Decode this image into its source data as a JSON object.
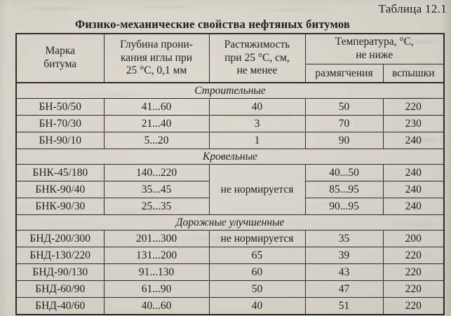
{
  "page": {
    "table_label": "Таблица 12.1",
    "title": "Физико-механические свойства нефтяных битумов"
  },
  "table": {
    "headers": {
      "grade": "Марка\nбитума",
      "penetration": "Глубина прони-\nкания иглы при\n25 °С, 0,1 мм",
      "ductility": "Растяжимость\nпри 25 °С, см,\nне менее",
      "temperature": "Температура, °С,\nне ниже",
      "softening": "размягчения",
      "flash": "вспышки"
    },
    "sections": [
      {
        "name": "Строительные",
        "rows": [
          {
            "grade": "БН-50/50",
            "penetration": "41...60",
            "ductility": "40",
            "softening": "50",
            "flash": "220"
          },
          {
            "grade": "БН-70/30",
            "penetration": "21...40",
            "ductility": "3",
            "softening": "70",
            "flash": "230"
          },
          {
            "grade": "БН-90/10",
            "penetration": "5...20",
            "ductility": "1",
            "softening": "90",
            "flash": "240"
          }
        ]
      },
      {
        "name": "Кровельные",
        "merged_ductility": "не нормируется",
        "rows": [
          {
            "grade": "БНК-45/180",
            "penetration": "140...220",
            "softening": "40...50",
            "flash": "240"
          },
          {
            "grade": "БНК-90/40",
            "penetration": "35...45",
            "softening": "85...95",
            "flash": "240"
          },
          {
            "grade": "БНК-90/30",
            "penetration": "25...35",
            "softening": "90...95",
            "flash": "240"
          }
        ]
      },
      {
        "name": "Дорожные улучшенные",
        "rows": [
          {
            "grade": "БНД-200/300",
            "penetration": "201...300",
            "ductility": "не нормируется",
            "softening": "35",
            "flash": "200"
          },
          {
            "grade": "БНД-130/220",
            "penetration": "131...200",
            "ductility": "65",
            "softening": "39",
            "flash": "220"
          },
          {
            "grade": "БНД-90/130",
            "penetration": "91...130",
            "ductility": "60",
            "softening": "43",
            "flash": "220"
          },
          {
            "grade": "БНД-60/90",
            "penetration": "61...90",
            "ductility": "50",
            "softening": "47",
            "flash": "220"
          },
          {
            "grade": "БНД-40/60",
            "penetration": "40...60",
            "ductility": "40",
            "softening": "51",
            "flash": "220"
          }
        ]
      }
    ]
  },
  "colors": {
    "paper": "#d6d3ca",
    "ink": "#1f1e1b",
    "line": "#2e2c27"
  }
}
